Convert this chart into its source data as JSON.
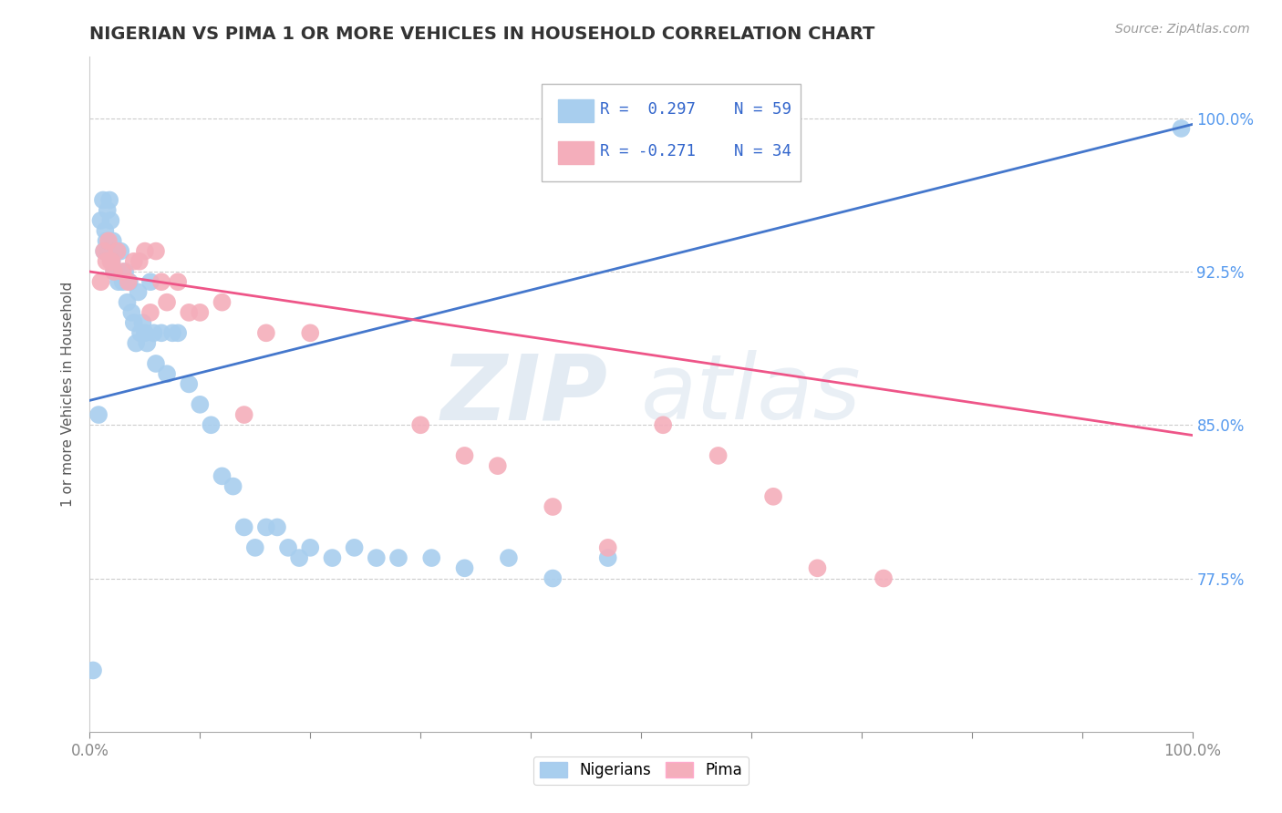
{
  "title": "NIGERIAN VS PIMA 1 OR MORE VEHICLES IN HOUSEHOLD CORRELATION CHART",
  "source_text": "Source: ZipAtlas.com",
  "ylabel": "1 or more Vehicles in Household",
  "yticks": [
    0.775,
    0.85,
    0.925,
    1.0
  ],
  "ytick_labels": [
    "77.5%",
    "85.0%",
    "92.5%",
    "100.0%"
  ],
  "legend_r1": "R =  0.297",
  "legend_n1": "N = 59",
  "legend_r2": "R = -0.271",
  "legend_n2": "N = 34",
  "blue_color": "#A8CEEE",
  "pink_color": "#F4AEBB",
  "line_blue": "#4477CC",
  "line_pink": "#EE5588",
  "watermark_zip": "ZIP",
  "watermark_atlas": "atlas",
  "nigerian_x": [
    0.003,
    0.008,
    0.01,
    0.012,
    0.013,
    0.014,
    0.015,
    0.016,
    0.017,
    0.018,
    0.019,
    0.02,
    0.021,
    0.022,
    0.023,
    0.025,
    0.026,
    0.028,
    0.03,
    0.032,
    0.034,
    0.036,
    0.038,
    0.04,
    0.042,
    0.044,
    0.046,
    0.048,
    0.05,
    0.052,
    0.055,
    0.058,
    0.06,
    0.065,
    0.07,
    0.075,
    0.08,
    0.09,
    0.1,
    0.11,
    0.12,
    0.13,
    0.14,
    0.15,
    0.16,
    0.17,
    0.18,
    0.19,
    0.2,
    0.22,
    0.24,
    0.26,
    0.28,
    0.31,
    0.34,
    0.38,
    0.42,
    0.47,
    0.99
  ],
  "nigerian_y": [
    0.73,
    0.855,
    0.95,
    0.96,
    0.935,
    0.945,
    0.94,
    0.955,
    0.935,
    0.96,
    0.95,
    0.93,
    0.94,
    0.925,
    0.935,
    0.925,
    0.92,
    0.935,
    0.92,
    0.925,
    0.91,
    0.92,
    0.905,
    0.9,
    0.89,
    0.915,
    0.895,
    0.9,
    0.895,
    0.89,
    0.92,
    0.895,
    0.88,
    0.895,
    0.875,
    0.895,
    0.895,
    0.87,
    0.86,
    0.85,
    0.825,
    0.82,
    0.8,
    0.79,
    0.8,
    0.8,
    0.79,
    0.785,
    0.79,
    0.785,
    0.79,
    0.785,
    0.785,
    0.785,
    0.78,
    0.785,
    0.775,
    0.785,
    0.995
  ],
  "pima_x": [
    0.01,
    0.013,
    0.015,
    0.017,
    0.019,
    0.02,
    0.022,
    0.025,
    0.03,
    0.035,
    0.04,
    0.045,
    0.05,
    0.055,
    0.06,
    0.065,
    0.07,
    0.08,
    0.09,
    0.1,
    0.12,
    0.14,
    0.16,
    0.2,
    0.3,
    0.34,
    0.37,
    0.42,
    0.47,
    0.52,
    0.57,
    0.62,
    0.66,
    0.72
  ],
  "pima_y": [
    0.92,
    0.935,
    0.93,
    0.94,
    0.93,
    0.93,
    0.925,
    0.935,
    0.925,
    0.92,
    0.93,
    0.93,
    0.935,
    0.905,
    0.935,
    0.92,
    0.91,
    0.92,
    0.905,
    0.905,
    0.91,
    0.855,
    0.895,
    0.895,
    0.85,
    0.835,
    0.83,
    0.81,
    0.79,
    0.85,
    0.835,
    0.815,
    0.78,
    0.775
  ],
  "background_color": "#FFFFFF",
  "grid_color": "#CCCCCC"
}
